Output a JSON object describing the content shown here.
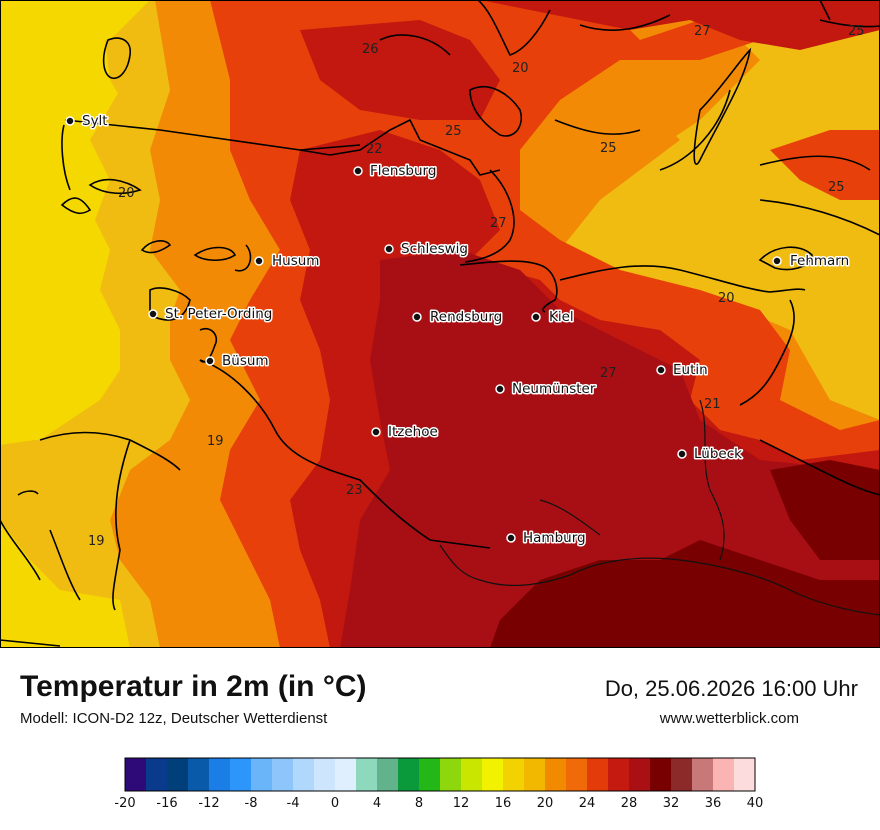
{
  "header": {
    "title": "Temperatur in 2m (in °C)",
    "subtitle": "Modell: ICON-D2 12z, Deutscher Wetterdienst",
    "datetime": "Do, 25.06.2026 16:00 Uhr",
    "website": "www.wetterblick.com"
  },
  "map": {
    "cities": [
      {
        "name": "Sylt"
      },
      {
        "name": "Flensburg"
      },
      {
        "name": "Schleswig"
      },
      {
        "name": "Husum"
      },
      {
        "name": "St. Peter-Ording"
      },
      {
        "name": "Büsum"
      },
      {
        "name": "Rendsburg"
      },
      {
        "name": "Kiel"
      },
      {
        "name": "Fehmarn"
      },
      {
        "name": "Eutin"
      },
      {
        "name": "Neumünster"
      },
      {
        "name": "Itzehoe"
      },
      {
        "name": "Lübeck"
      },
      {
        "name": "Hamburg"
      }
    ],
    "contour_labels": [
      "26",
      "27",
      "25",
      "20",
      "25",
      "22",
      "25",
      "25",
      "20",
      "27",
      "20",
      "27",
      "21",
      "19",
      "23",
      "19"
    ]
  },
  "legend": {
    "colors": [
      "#2e0a78",
      "#0a3a8c",
      "#003f7a",
      "#0a5aaa",
      "#1a7ee6",
      "#2d96fa",
      "#6ab4fa",
      "#8ec6fc",
      "#b0d8fd",
      "#cde6fe",
      "#e0effe",
      "#8ed8be",
      "#62b28c",
      "#0a9a3c",
      "#23b817",
      "#8ed70c",
      "#c8e600",
      "#f2f200",
      "#f2d200",
      "#f2b800",
      "#f28a00",
      "#f06a0a",
      "#e33c0a",
      "#c41a0f",
      "#aa0f14",
      "#780000",
      "#8c2a2a",
      "#c87878",
      "#fab4b4",
      "#fcdcdc"
    ],
    "ticks": [
      "-20",
      "-16",
      "-12",
      "-8",
      "-4",
      "0",
      "4",
      "8",
      "12",
      "16",
      "20",
      "24",
      "28",
      "32",
      "36",
      "40"
    ],
    "min": -20,
    "max": 40
  },
  "colors": {
    "sea": "#f5d800",
    "t19": "#f0bc12",
    "t21": "#f28a05",
    "t23": "#e8400a",
    "t25": "#c2180f",
    "t28": "#a80f14",
    "t30": "#780000"
  }
}
